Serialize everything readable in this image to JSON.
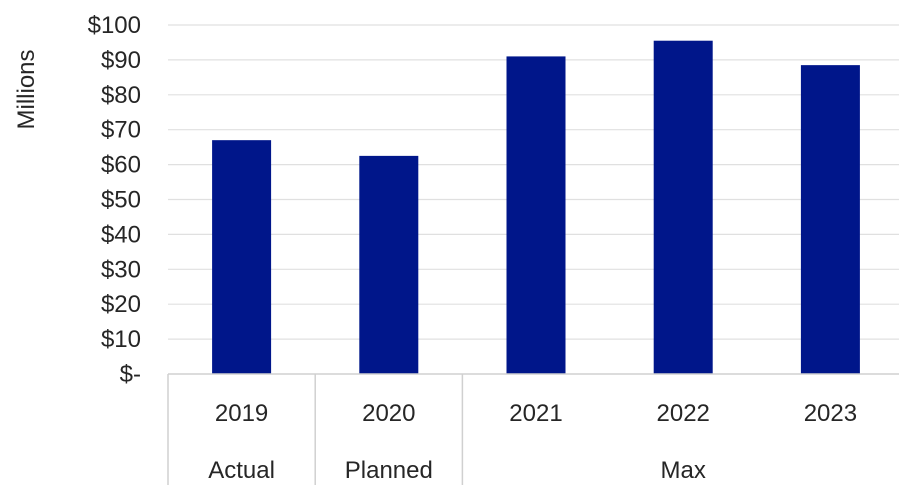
{
  "chart_data": {
    "type": "bar",
    "ylabel": "Millions",
    "categories": [
      "2019",
      "2020",
      "2021",
      "2022",
      "2023"
    ],
    "category_groups": [
      {
        "label": "Actual",
        "categories": [
          "2019"
        ]
      },
      {
        "label": "Planned",
        "categories": [
          "2020"
        ]
      },
      {
        "label": "Max",
        "categories": [
          "2021",
          "2022",
          "2023"
        ]
      }
    ],
    "values": [
      67,
      62.5,
      91,
      95.5,
      88.5
    ],
    "ylim": [
      0,
      100
    ],
    "yticks": [
      0,
      10,
      20,
      30,
      40,
      50,
      60,
      70,
      80,
      90,
      100
    ],
    "ytick_labels": [
      "$-",
      "$10",
      "$20",
      "$30",
      "$40",
      "$50",
      "$60",
      "$70",
      "$80",
      "$90",
      "$100"
    ],
    "grid": true,
    "bar_color": "#00168a",
    "grid_color": "#e0e0e0",
    "axis_color": "#d0d0d0"
  }
}
